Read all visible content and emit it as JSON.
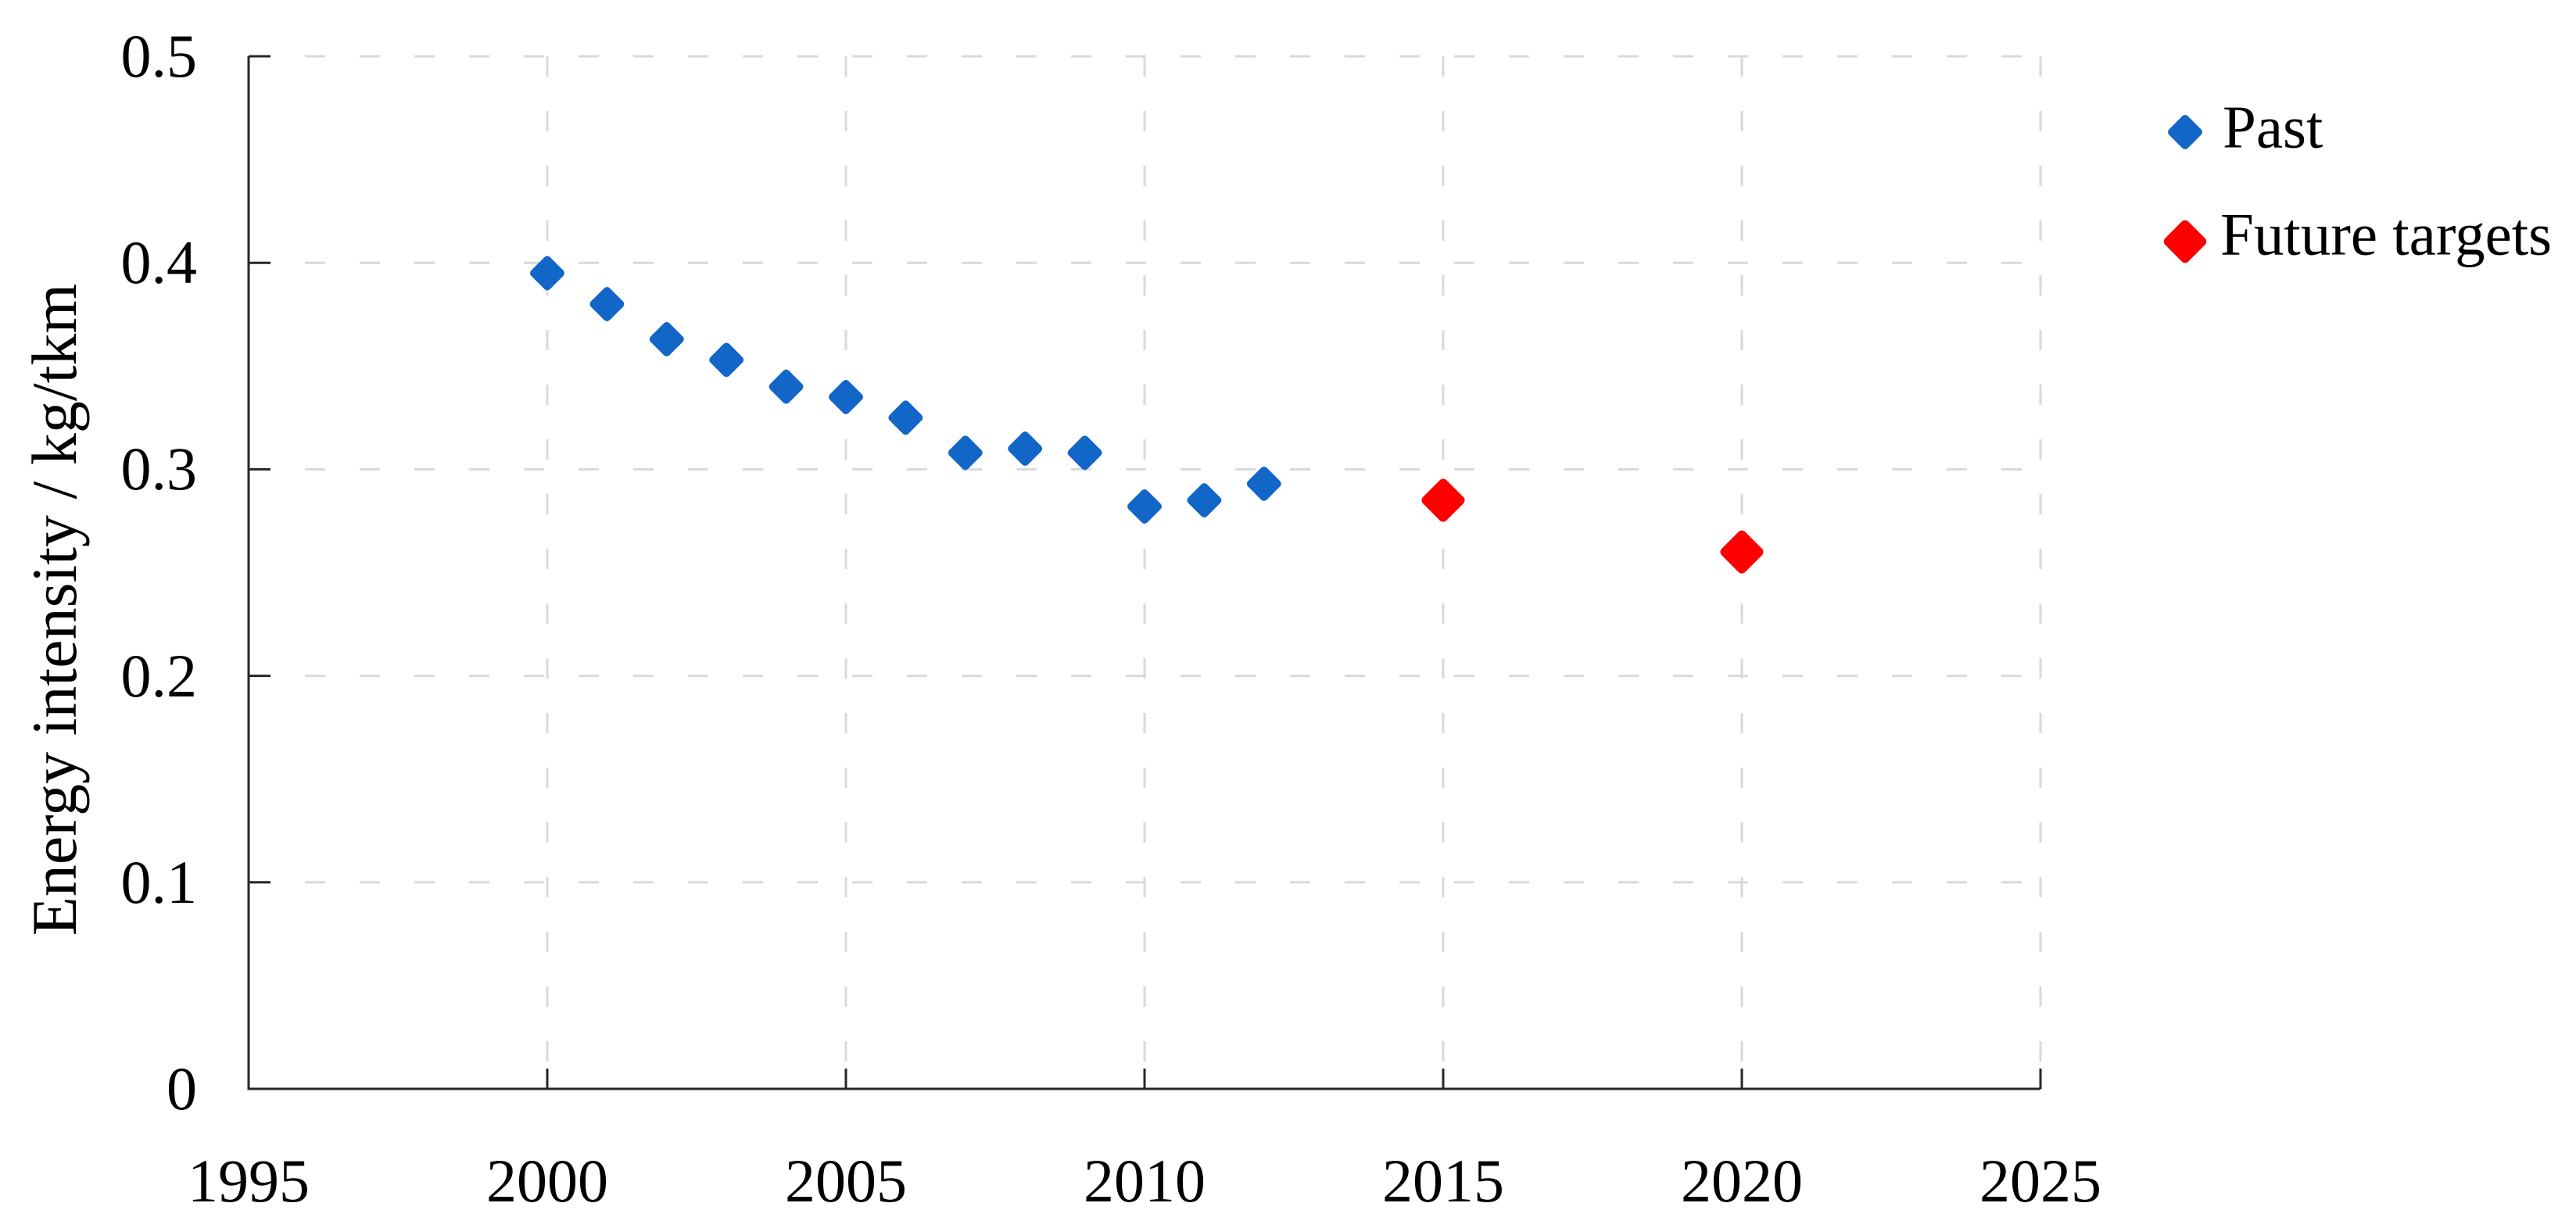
{
  "chart_data": {
    "type": "scatter",
    "title": "",
    "xlabel": "",
    "ylabel": "Energy intensity / kg/tkm",
    "xlim": [
      1995,
      2025
    ],
    "ylim": [
      0,
      0.5
    ],
    "grid": "dashed",
    "legend_position": "right",
    "x_ticks": [
      {
        "value": 1995,
        "label": "1995"
      },
      {
        "value": 2000,
        "label": "2000"
      },
      {
        "value": 2005,
        "label": "2005"
      },
      {
        "value": 2010,
        "label": "2010"
      },
      {
        "value": 2015,
        "label": "2015"
      },
      {
        "value": 2020,
        "label": "2020"
      },
      {
        "value": 2025,
        "label": "2025"
      }
    ],
    "y_ticks": [
      {
        "value": 0,
        "label": "0"
      },
      {
        "value": 0.1,
        "label": "0.1"
      },
      {
        "value": 0.2,
        "label": "0.2"
      },
      {
        "value": 0.3,
        "label": "0.3"
      },
      {
        "value": 0.4,
        "label": "0.4"
      },
      {
        "value": 0.5,
        "label": "0.5"
      }
    ],
    "series": [
      {
        "name": "Past",
        "marker": "diamond",
        "color": "#1166C7",
        "marker_size": 48,
        "points": [
          {
            "year": 2000,
            "value": 0.395
          },
          {
            "year": 2001,
            "value": 0.38
          },
          {
            "year": 2002,
            "value": 0.363
          },
          {
            "year": 2003,
            "value": 0.353
          },
          {
            "year": 2004,
            "value": 0.34
          },
          {
            "year": 2005,
            "value": 0.335
          },
          {
            "year": 2006,
            "value": 0.325
          },
          {
            "year": 2007,
            "value": 0.308
          },
          {
            "year": 2008,
            "value": 0.31
          },
          {
            "year": 2009,
            "value": 0.308
          },
          {
            "year": 2010,
            "value": 0.282
          },
          {
            "year": 2011,
            "value": 0.285
          },
          {
            "year": 2012,
            "value": 0.293
          }
        ]
      },
      {
        "name": "Future targets",
        "marker": "diamond",
        "color": "#FF0000",
        "marker_size": 60,
        "points": [
          {
            "year": 2015,
            "value": 0.285
          },
          {
            "year": 2020,
            "value": 0.26
          }
        ]
      }
    ],
    "colors": {
      "axis": "#262626",
      "gridline": "#D9D9D9",
      "text": "#000000",
      "background": "#FFFFFF"
    }
  }
}
